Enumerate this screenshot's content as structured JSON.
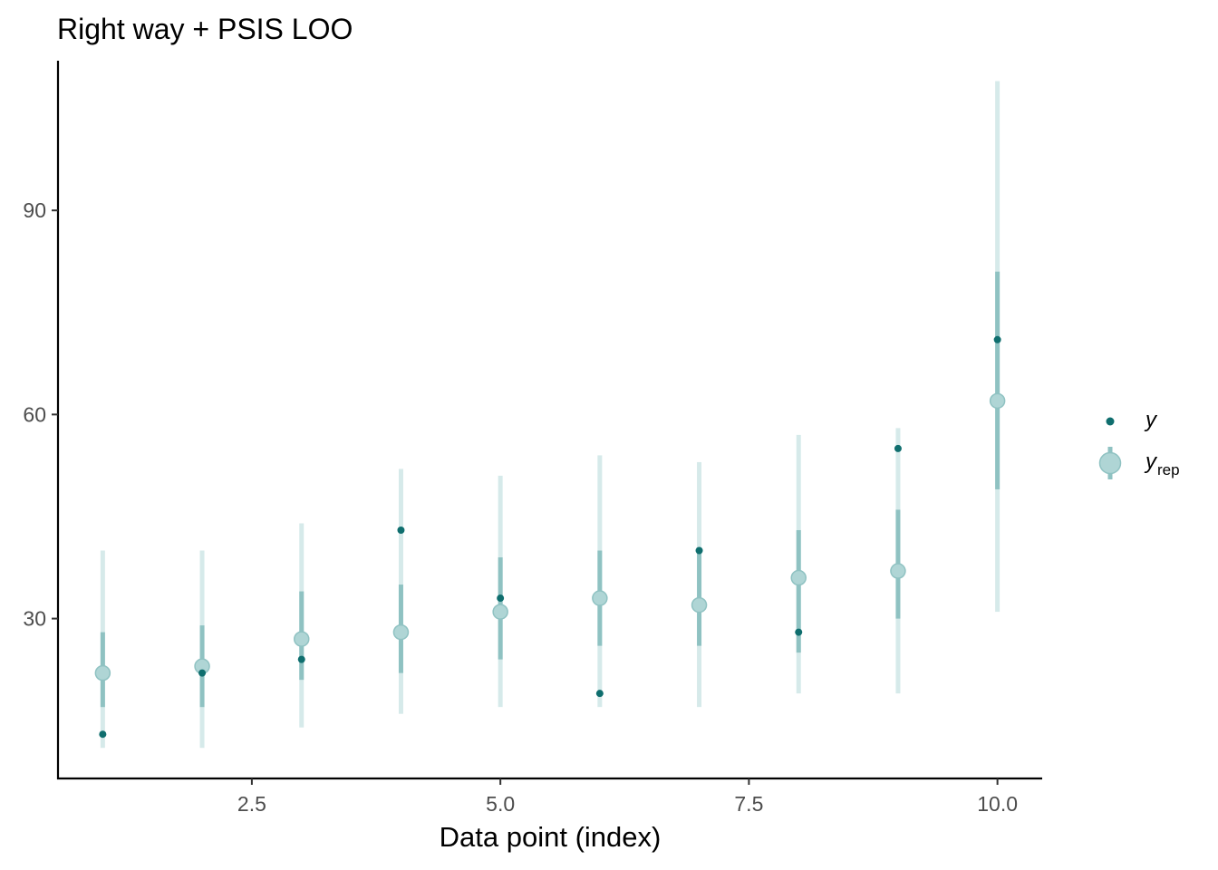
{
  "chart_data": {
    "type": "scatter",
    "title": "Right way + PSIS LOO",
    "xlabel": "Data point (index)",
    "ylabel": "",
    "x_ticks": [
      2.5,
      5.0,
      7.5,
      10.0
    ],
    "x_tick_labels": [
      "2.5",
      "5.0",
      "7.5",
      "10.0"
    ],
    "y_ticks": [
      30,
      60,
      90
    ],
    "y_tick_labels": [
      "30",
      "60",
      "90"
    ],
    "xlim": [
      0.55,
      10.45
    ],
    "ylim": [
      6.5,
      112
    ],
    "grid": false,
    "legend_position": "right",
    "legend": [
      {
        "key": "y",
        "label": "y",
        "subscript": ""
      },
      {
        "key": "yrep",
        "label": "y",
        "subscript": "rep"
      }
    ],
    "colors": {
      "y": "#0f6e6e",
      "yrep_point_fill": "#afd5d5",
      "yrep_point_stroke": "#8fc2c2",
      "inner_interval": "#8fc2c2",
      "outer_interval": "#d6eaea"
    },
    "x": [
      1,
      2,
      3,
      4,
      5,
      6,
      7,
      8,
      9,
      10
    ],
    "series": [
      {
        "name": "y",
        "values": [
          13,
          22,
          24,
          43,
          33,
          19,
          40,
          28,
          55,
          71
        ]
      },
      {
        "name": "y_rep",
        "values": [
          22,
          23,
          27,
          28,
          31,
          33,
          32,
          36,
          37,
          62
        ]
      }
    ],
    "intervals_inner": [
      [
        17,
        28
      ],
      [
        17,
        29
      ],
      [
        21,
        34
      ],
      [
        22,
        35
      ],
      [
        24,
        39
      ],
      [
        26,
        40
      ],
      [
        26,
        40
      ],
      [
        25,
        43
      ],
      [
        30,
        46
      ],
      [
        49,
        81
      ]
    ],
    "intervals_outer": [
      [
        11,
        40
      ],
      [
        11,
        40
      ],
      [
        14,
        44
      ],
      [
        16,
        52
      ],
      [
        17,
        51
      ],
      [
        17,
        54
      ],
      [
        17,
        53
      ],
      [
        19,
        57
      ],
      [
        19,
        58
      ],
      [
        31,
        109
      ]
    ]
  }
}
